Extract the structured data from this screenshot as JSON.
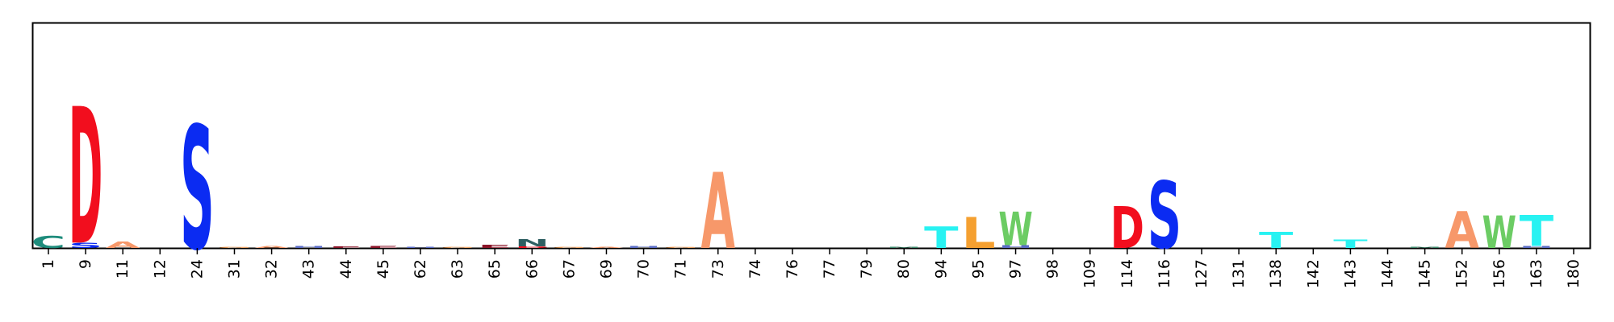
{
  "chart_data": {
    "type": "sequence-logo",
    "positions": [
      "1",
      "9",
      "11",
      "12",
      "24",
      "31",
      "32",
      "43",
      "44",
      "45",
      "62",
      "63",
      "65",
      "66",
      "67",
      "69",
      "70",
      "71",
      "73",
      "74",
      "76",
      "77",
      "79",
      "80",
      "94",
      "95",
      "97",
      "98",
      "109",
      "114",
      "116",
      "127",
      "131",
      "138",
      "142",
      "143",
      "144",
      "145",
      "152",
      "156",
      "163",
      "180"
    ],
    "ylim": [
      0,
      4.2
    ],
    "grid": false,
    "colors": {
      "A": "#f7986a",
      "C": "#1e8c7c",
      "D": "#f20e1e",
      "E": "#8b1428",
      "G": "#f3a05a",
      "H": "#5a6cc6",
      "L": "#f5a030",
      "M": "#3d8a6d",
      "N": "#2f5f62",
      "S": "#0b2bf2",
      "T": "#28f2f2",
      "W": "#6ccc64"
    },
    "stacks": [
      {
        "position": "1",
        "letters": [
          {
            "letter": "C",
            "height": 0.22
          }
        ]
      },
      {
        "position": "9",
        "letters": [
          {
            "letter": "S",
            "height": 0.1
          },
          {
            "letter": "D",
            "height": 2.55
          }
        ]
      },
      {
        "position": "11",
        "letters": [
          {
            "letter": "A",
            "height": 0.12
          }
        ]
      },
      {
        "position": "12",
        "letters": []
      },
      {
        "position": "24",
        "letters": [
          {
            "letter": "S",
            "height": 2.3
          }
        ]
      },
      {
        "position": "31",
        "letters": [
          {
            "letter": "G",
            "height": 0.02
          }
        ]
      },
      {
        "position": "32",
        "letters": [
          {
            "letter": "A",
            "height": 0.04
          }
        ]
      },
      {
        "position": "43",
        "letters": [
          {
            "letter": "H",
            "height": 0.04
          }
        ]
      },
      {
        "position": "44",
        "letters": [
          {
            "letter": "E",
            "height": 0.03
          }
        ]
      },
      {
        "position": "45",
        "letters": [
          {
            "letter": "E",
            "height": 0.04
          }
        ]
      },
      {
        "position": "62",
        "letters": [
          {
            "letter": "H",
            "height": 0.02
          }
        ]
      },
      {
        "position": "63",
        "letters": [
          {
            "letter": "G",
            "height": 0.02
          }
        ]
      },
      {
        "position": "65",
        "letters": [
          {
            "letter": "E",
            "height": 0.06
          }
        ]
      },
      {
        "position": "66",
        "letters": [
          {
            "letter": "D",
            "height": 0.03
          },
          {
            "letter": "N",
            "height": 0.14
          }
        ]
      },
      {
        "position": "67",
        "letters": [
          {
            "letter": "G",
            "height": 0.02
          }
        ]
      },
      {
        "position": "69",
        "letters": [
          {
            "letter": "A",
            "height": 0.02
          }
        ]
      },
      {
        "position": "70",
        "letters": [
          {
            "letter": "H",
            "height": 0.04
          }
        ]
      },
      {
        "position": "71",
        "letters": [
          {
            "letter": "G",
            "height": 0.02
          }
        ]
      },
      {
        "position": "73",
        "letters": [
          {
            "letter": "A",
            "height": 1.42
          }
        ]
      },
      {
        "position": "74",
        "letters": []
      },
      {
        "position": "76",
        "letters": []
      },
      {
        "position": "77",
        "letters": []
      },
      {
        "position": "79",
        "letters": []
      },
      {
        "position": "80",
        "letters": [
          {
            "letter": "M",
            "height": 0.02
          }
        ]
      },
      {
        "position": "94",
        "letters": [
          {
            "letter": "T",
            "height": 0.4
          }
        ]
      },
      {
        "position": "95",
        "letters": [
          {
            "letter": "L",
            "height": 0.58
          }
        ]
      },
      {
        "position": "97",
        "letters": [
          {
            "letter": "H",
            "height": 0.05
          },
          {
            "letter": "W",
            "height": 0.62
          }
        ]
      },
      {
        "position": "98",
        "letters": []
      },
      {
        "position": "109",
        "letters": []
      },
      {
        "position": "114",
        "letters": [
          {
            "letter": "D",
            "height": 0.78
          }
        ]
      },
      {
        "position": "116",
        "letters": [
          {
            "letter": "S",
            "height": 1.25
          }
        ]
      },
      {
        "position": "127",
        "letters": []
      },
      {
        "position": "131",
        "letters": []
      },
      {
        "position": "138",
        "letters": [
          {
            "letter": "T",
            "height": 0.3
          }
        ]
      },
      {
        "position": "142",
        "letters": []
      },
      {
        "position": "143",
        "letters": [
          {
            "letter": "T",
            "height": 0.16
          }
        ]
      },
      {
        "position": "144",
        "letters": []
      },
      {
        "position": "145",
        "letters": [
          {
            "letter": "M",
            "height": 0.02
          }
        ]
      },
      {
        "position": "152",
        "letters": [
          {
            "letter": "A",
            "height": 0.68
          }
        ]
      },
      {
        "position": "156",
        "letters": [
          {
            "letter": "W",
            "height": 0.6
          }
        ]
      },
      {
        "position": "163",
        "letters": [
          {
            "letter": "H",
            "height": 0.04
          },
          {
            "letter": "T",
            "height": 0.58
          }
        ]
      },
      {
        "position": "180",
        "letters": []
      }
    ]
  }
}
